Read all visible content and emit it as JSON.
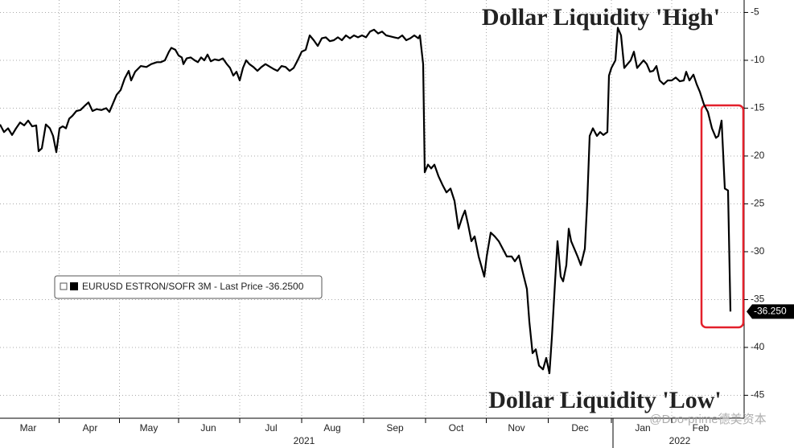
{
  "chart_data": {
    "type": "line",
    "annotations": [
      {
        "text": "Dollar Liquidity 'High'",
        "color": "#4a7d1c"
      },
      {
        "text": "Dollar Liquidity 'Low'",
        "color": "#e3202b"
      }
    ],
    "watermark": "@Doo-prime德美资本",
    "series": [
      {
        "name": "EURUSD ESTRON/SOFR 3M - Last Price -36.2500",
        "color": "#000000",
        "x": [
          0,
          5,
          10,
          15,
          20,
          25,
          30,
          35,
          40,
          45,
          48,
          52,
          57,
          62,
          66,
          70,
          74,
          78,
          82,
          86,
          90,
          95,
          100,
          106,
          110,
          115,
          120,
          126,
          132,
          136,
          140,
          145,
          150,
          155,
          160,
          163,
          168,
          175,
          182,
          188,
          195,
          200,
          205,
          210,
          213,
          218,
          222,
          226,
          228,
          232,
          237,
          242,
          246,
          250,
          254,
          258,
          262,
          267,
          272,
          277,
          282,
          286,
          290,
          294,
          298,
          302,
          306,
          310,
          315,
          320,
          325,
          330,
          336,
          340,
          345,
          350,
          355,
          360,
          365,
          370,
          375,
          380,
          385,
          390,
          395,
          400,
          405,
          410,
          415,
          420,
          425,
          430,
          435,
          440,
          445,
          450,
          455,
          460,
          465,
          470,
          475,
          480,
          485,
          490,
          495,
          500,
          505,
          510,
          515,
          520,
          522,
          526,
          528,
          532,
          536,
          540,
          545,
          550,
          555,
          560,
          565,
          570,
          575,
          578,
          582,
          586,
          590,
          595,
          598,
          602,
          605,
          610,
          615,
          620,
          625,
          630,
          636,
          640,
          645,
          650,
          655,
          658,
          662,
          666,
          670,
          675,
          679,
          683,
          686,
          690,
          693,
          697,
          700,
          704,
          707,
          710,
          714,
          718,
          722,
          727,
          730,
          733,
          737,
          742,
          746,
          750,
          755,
          757,
          760,
          765,
          768,
          772,
          776,
          780,
          784,
          788,
          792,
          796,
          800,
          804,
          808,
          812,
          816,
          820,
          825,
          830,
          835,
          840,
          845,
          850,
          853,
          857,
          862,
          866,
          870,
          875,
          880,
          885,
          890,
          893,
          897,
          901,
          905,
          908
        ],
        "values": [
          -16.7,
          -17.5,
          -17.1,
          -17.8,
          -17.1,
          -16.5,
          -16.8,
          -16.3,
          -16.9,
          -16.8,
          -19.5,
          -19.2,
          -16.7,
          -17.1,
          -17.9,
          -19.6,
          -17.1,
          -16.9,
          -17.1,
          -16.1,
          -15.8,
          -15.3,
          -15.2,
          -14.7,
          -14.4,
          -15.3,
          -15.1,
          -15.2,
          -15.0,
          -15.4,
          -14.6,
          -13.6,
          -13.1,
          -11.9,
          -11.1,
          -12.1,
          -11.2,
          -10.6,
          -10.7,
          -10.4,
          -10.2,
          -10.2,
          -10.0,
          -9.1,
          -8.7,
          -8.9,
          -9.5,
          -9.7,
          -10.4,
          -9.8,
          -9.7,
          -10.0,
          -10.2,
          -9.7,
          -10.0,
          -9.4,
          -10.1,
          -9.9,
          -10.0,
          -9.8,
          -10.4,
          -10.8,
          -11.6,
          -11.2,
          -12.1,
          -10.8,
          -10.0,
          -10.4,
          -10.7,
          -11.1,
          -10.7,
          -10.4,
          -10.7,
          -10.9,
          -11.1,
          -10.6,
          -10.7,
          -11.1,
          -10.8,
          -10.0,
          -9.1,
          -8.9,
          -7.4,
          -7.9,
          -8.5,
          -7.7,
          -7.6,
          -8.0,
          -7.9,
          -7.6,
          -7.9,
          -7.4,
          -7.7,
          -7.4,
          -7.6,
          -7.4,
          -7.6,
          -7.0,
          -6.8,
          -7.2,
          -7.0,
          -7.4,
          -7.5,
          -7.6,
          -7.7,
          -7.4,
          -7.9,
          -7.7,
          -7.4,
          -7.7,
          -7.4,
          -10.4,
          -21.7,
          -20.9,
          -21.3,
          -20.9,
          -22.1,
          -23.0,
          -23.8,
          -23.4,
          -24.7,
          -27.6,
          -26.3,
          -25.7,
          -27.2,
          -28.9,
          -28.4,
          -30.5,
          -31.4,
          -32.6,
          -30.5,
          -28.0,
          -28.4,
          -28.9,
          -29.7,
          -30.5,
          -30.5,
          -31.0,
          -30.4,
          -32.2,
          -33.9,
          -37.3,
          -40.6,
          -40.2,
          -41.9,
          -42.3,
          -41.1,
          -42.7,
          -39.0,
          -33.1,
          -28.9,
          -32.6,
          -33.1,
          -31.4,
          -27.6,
          -28.9,
          -29.7,
          -30.5,
          -31.4,
          -29.7,
          -24.7,
          -17.9,
          -17.1,
          -17.9,
          -17.5,
          -17.8,
          -17.5,
          -11.6,
          -10.8,
          -10.0,
          -6.6,
          -7.4,
          -10.8,
          -10.4,
          -10.0,
          -9.1,
          -10.8,
          -10.4,
          -10.0,
          -10.4,
          -11.2,
          -11.1,
          -10.6,
          -12.1,
          -12.5,
          -12.1,
          -12.1,
          -11.8,
          -12.2,
          -12.1,
          -11.2,
          -12.1,
          -11.5,
          -12.5,
          -13.3,
          -14.6,
          -15.4,
          -17.1,
          -18.1,
          -17.9,
          -16.3,
          -23.4,
          -23.6,
          -36.25
        ]
      }
    ],
    "last_label": "-36.250",
    "xlim": [
      0,
      925
    ],
    "xticks": [
      {
        "value": 35,
        "label": "Mar"
      },
      {
        "value": 112,
        "label": "Apr"
      },
      {
        "value": 185,
        "label": "May"
      },
      {
        "value": 259,
        "label": "Jun"
      },
      {
        "value": 337,
        "label": "Jul"
      },
      {
        "value": 413,
        "label": "Aug"
      },
      {
        "value": 491,
        "label": "Sep"
      },
      {
        "value": 567,
        "label": "Oct"
      },
      {
        "value": 642,
        "label": "Nov"
      },
      {
        "value": 721,
        "label": "Dec"
      },
      {
        "value": 799,
        "label": "Jan"
      },
      {
        "value": 871,
        "label": "Feb"
      }
    ],
    "years": [
      {
        "value": 378,
        "label": "2021"
      },
      {
        "value": 845,
        "label": "2022"
      }
    ],
    "ylim": [
      -47.4,
      -3.7
    ],
    "yticks": [
      -5,
      -10,
      -15,
      -20,
      -25,
      -30,
      -35,
      -40,
      -45
    ],
    "grid": true
  }
}
